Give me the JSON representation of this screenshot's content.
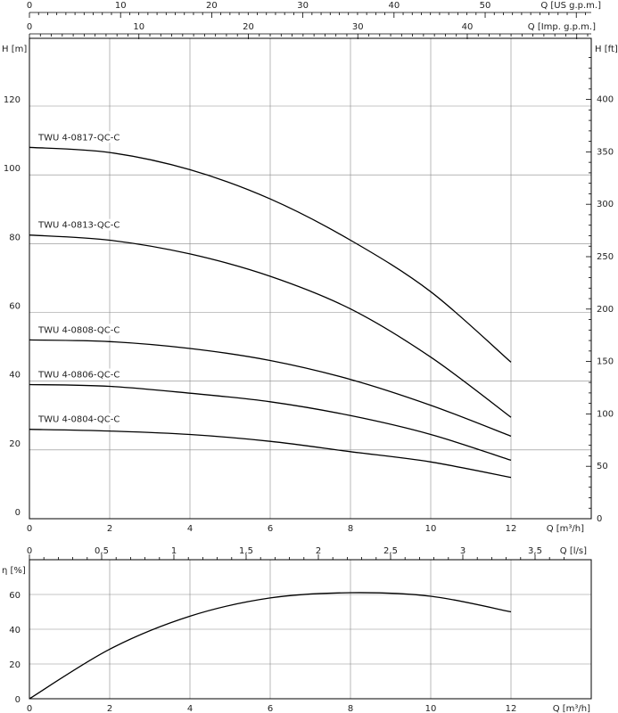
{
  "chart_data": [
    {
      "type": "line",
      "title": "",
      "x_axis": {
        "label": "Q [m³/h]",
        "range": [
          0,
          14
        ],
        "ticks": [
          "0",
          "2",
          "4",
          "6",
          "8",
          "10",
          "12"
        ]
      },
      "y_axis": {
        "label": "H [m]",
        "range": [
          0,
          137
        ],
        "ticks": [
          "0",
          "20",
          "40",
          "60",
          "80",
          "100",
          "120"
        ]
      },
      "y_axis_right": {
        "label": "H [ft]",
        "ticks": [
          "0",
          "50",
          "100",
          "150",
          "200",
          "250",
          "300",
          "350",
          "400"
        ]
      },
      "top_axis_us": {
        "label": "Q [US g.p.m.]",
        "ticks": [
          "0",
          "10",
          "20",
          "30",
          "40",
          "50"
        ]
      },
      "top_axis_imp": {
        "label": "Q [Imp. g.p.m.]",
        "ticks": [
          "0",
          "10",
          "20",
          "30",
          "40"
        ]
      },
      "grid": true,
      "series": [
        {
          "name": "TWU 4-0817-QC-C",
          "x": [
            0,
            2,
            4,
            6,
            8,
            10,
            12
          ],
          "y": [
            108,
            106.5,
            101.5,
            93,
            81,
            66,
            45.5
          ]
        },
        {
          "name": "TWU 4-0813-QC-C",
          "x": [
            0,
            2,
            4,
            6,
            8,
            10,
            12
          ],
          "y": [
            82.5,
            81,
            77,
            70.5,
            61,
            47,
            29.5
          ]
        },
        {
          "name": "TWU 4-0808-QC-C",
          "x": [
            0,
            2,
            4,
            6,
            8,
            10,
            12
          ],
          "y": [
            52,
            51.5,
            49.5,
            46,
            40.5,
            33,
            24
          ]
        },
        {
          "name": "TWU 4-0806-QC-C",
          "x": [
            0,
            2,
            4,
            6,
            8,
            10,
            12
          ],
          "y": [
            39,
            38.5,
            36.5,
            34,
            30,
            24.5,
            17
          ]
        },
        {
          "name": "TWU 4-0804-QC-C",
          "x": [
            0,
            2,
            4,
            6,
            8,
            10,
            12
          ],
          "y": [
            26,
            25.5,
            24.5,
            22.5,
            19.5,
            16.5,
            12
          ]
        }
      ]
    },
    {
      "type": "line",
      "title": "",
      "x_axis": {
        "label": "Q [m³/h]",
        "range": [
          0,
          14
        ],
        "ticks": [
          "0",
          "2",
          "4",
          "6",
          "8",
          "10",
          "12"
        ]
      },
      "y_axis": {
        "label": "η [%]",
        "range": [
          0,
          73
        ],
        "ticks": [
          "0",
          "20",
          "40",
          "60"
        ]
      },
      "top_axis_ls": {
        "label": "Q [l/s]",
        "ticks": [
          "0",
          "0,5",
          "1",
          "1,5",
          "2",
          "2,5",
          "3",
          "3,5"
        ]
      },
      "grid": true,
      "series": [
        {
          "name": "",
          "x": [
            0,
            2,
            4,
            6,
            8,
            10,
            12
          ],
          "y": [
            0,
            28.5,
            47.5,
            58,
            61,
            59,
            50
          ]
        }
      ]
    }
  ]
}
